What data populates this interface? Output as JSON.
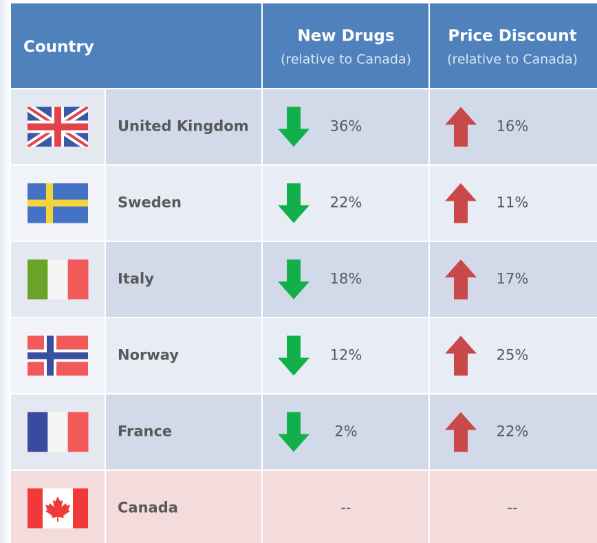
{
  "header": {
    "country": "Country",
    "new_drugs": "New Drugs",
    "new_drugs_sub": "(relative to Canada)",
    "price_discount": "Price Discount",
    "price_discount_sub": "(relative to Canada)"
  },
  "table": {
    "rows": [
      [
        "United Kingdom",
        "36%",
        "16%"
      ],
      [
        "Sweden",
        "22%",
        "11%"
      ],
      [
        "Italy",
        "18%",
        "17%"
      ],
      [
        "Norway",
        "12%",
        "25%"
      ],
      [
        "France",
        "2%",
        "22%"
      ],
      [
        "Canada",
        "--",
        "--"
      ]
    ]
  }
}
